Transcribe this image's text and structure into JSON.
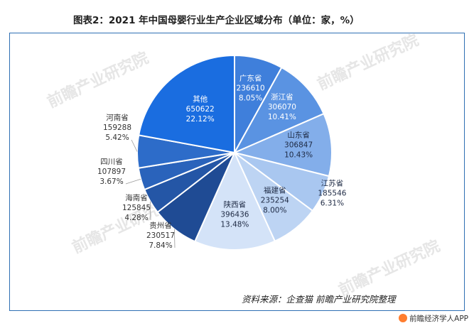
{
  "title": "图表2：2021 年中国母婴行业生产企业区域分布（单位：家，%）",
  "source": "资料来源：企查猫 前瞻产业研究院整理",
  "brand": "前瞻经济学人APP",
  "watermark": "前瞻产业研究院",
  "colors": {
    "frame": "#2f6fb3",
    "brand_icon": "#ff7d2e"
  },
  "chart_data": {
    "type": "pie",
    "title": "图表2：2021 年中国母婴行业生产企业区域分布（单位：家，%）",
    "start_angle_deg": 0,
    "direction": "clockwise",
    "slices": [
      {
        "name": "广东省",
        "value": 236610,
        "percent": "8.05%",
        "color": "#3f7fdb"
      },
      {
        "name": "浙江省",
        "value": 306070,
        "percent": "10.41%",
        "color": "#5a93e2"
      },
      {
        "name": "山东省",
        "value": 306847,
        "percent": "10.43%",
        "color": "#83aeea"
      },
      {
        "name": "江苏省",
        "value": 185546,
        "percent": "6.31%",
        "color": "#a9c7f0"
      },
      {
        "name": "福建省",
        "value": 235254,
        "percent": "8.00%",
        "color": "#bdd4f3"
      },
      {
        "name": "陕西省",
        "value": 396436,
        "percent": "13.48%",
        "color": "#d4e3f8"
      },
      {
        "name": "贵州省",
        "value": 230517,
        "percent": "7.84%",
        "color": "#1f4b94"
      },
      {
        "name": "海南省",
        "value": 125845,
        "percent": "4.28%",
        "color": "#2456a6"
      },
      {
        "name": "四川省",
        "value": 107897,
        "percent": "3.67%",
        "color": "#2a63bb"
      },
      {
        "name": "河南省",
        "value": 159288,
        "percent": "5.42%",
        "color": "#2d6cc9"
      },
      {
        "name": "其他",
        "value": 650622,
        "percent": "22.12%",
        "color": "#1a6de0"
      }
    ]
  }
}
